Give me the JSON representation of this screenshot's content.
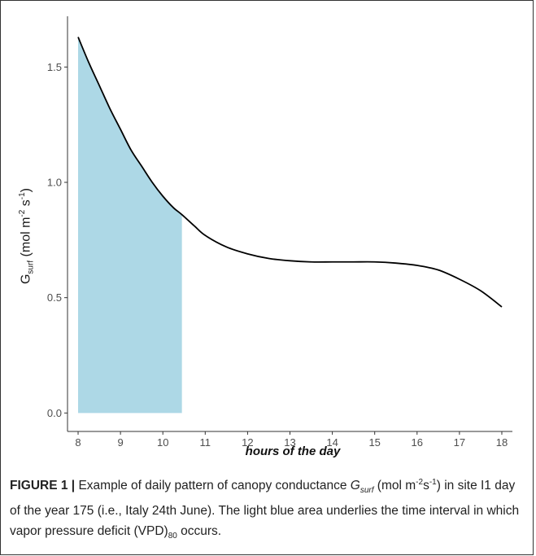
{
  "chart_data": {
    "type": "line",
    "xlabel": "hours of the day",
    "ylabel_main": "G",
    "ylabel_sub": "surf",
    "ylabel_unit_pre": " (mol m",
    "ylabel_unit_exp1": "-2",
    "ylabel_unit_mid": " s",
    "ylabel_unit_exp2": "-1",
    "ylabel_unit_post": ")",
    "xlim": [
      7.75,
      18.25
    ],
    "ylim": [
      -0.08,
      1.72
    ],
    "x_ticks": [
      8,
      9,
      10,
      11,
      12,
      13,
      14,
      15,
      16,
      17,
      18
    ],
    "y_ticks": [
      0.0,
      0.5,
      1.0,
      1.5
    ],
    "y_tick_labels": [
      "0.0",
      "0.5",
      "1.0",
      "1.5"
    ],
    "grid": false,
    "line_color": "#000000",
    "area_color": "#add8e6",
    "shaded_interval": [
      8,
      10.45
    ],
    "series": [
      {
        "x": [
          8.0,
          8.25,
          8.5,
          8.75,
          9.0,
          9.25,
          9.5,
          9.75,
          10.0,
          10.25,
          10.45,
          10.75,
          11.0,
          11.5,
          12.0,
          12.5,
          13.0,
          13.5,
          14.0,
          14.5,
          15.0,
          15.5,
          16.0,
          16.5,
          17.0,
          17.5,
          18.0
        ],
        "y": [
          1.63,
          1.52,
          1.42,
          1.32,
          1.23,
          1.14,
          1.07,
          1.0,
          0.94,
          0.89,
          0.86,
          0.81,
          0.77,
          0.72,
          0.69,
          0.67,
          0.66,
          0.655,
          0.655,
          0.655,
          0.655,
          0.65,
          0.64,
          0.62,
          0.58,
          0.53,
          0.46
        ]
      }
    ]
  },
  "caption": {
    "label": "FIGURE 1 |",
    "text_1": " Example of daily pattern of canopy conductance ",
    "g": "G",
    "g_sub": "surf",
    "text_2": " (mol m",
    "exp_1": "-2",
    "text_3": "s",
    "exp_2": "-1",
    "text_4": ") in site I1 day of the year 175 (i.e., Italy 24th June). The light blue area underlies the time interval in which vapor pressure deficit (VPD)",
    "vpd_sub": "80",
    "text_5": " occurs."
  }
}
